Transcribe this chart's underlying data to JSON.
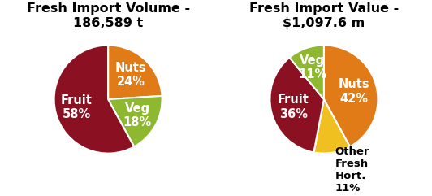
{
  "chart1": {
    "title": "Fresh Import Volume -\n186,589 t",
    "labels": [
      "Nuts",
      "Veg",
      "Fruit"
    ],
    "values": [
      24,
      18,
      58
    ],
    "colors": [
      "#E07B18",
      "#8DB830",
      "#8B1022"
    ],
    "label_colors": [
      "white",
      "white",
      "white"
    ],
    "startangle": 90,
    "label_radii": [
      0.62,
      0.62,
      0.6
    ],
    "label_ha": [
      "center",
      "center",
      "center"
    ]
  },
  "chart2": {
    "title": "Fresh Import Value -\n$1,097.6 m",
    "labels": [
      "Nuts",
      "Other\nFresh\nHort.\n11%",
      "Fruit",
      "Veg"
    ],
    "values": [
      42,
      11,
      36,
      11
    ],
    "colors": [
      "#E07B18",
      "#F0C020",
      "#8B1022",
      "#8DB830"
    ],
    "label_colors": [
      "white",
      "black",
      "white",
      "white"
    ],
    "startangle": 90,
    "label_radii": [
      0.58,
      1.32,
      0.58,
      0.62
    ],
    "label_ha": [
      "center",
      "left",
      "center",
      "center"
    ]
  },
  "background_color": "#ffffff",
  "title_fontsize": 11.5,
  "label_fontsize": 10.5
}
